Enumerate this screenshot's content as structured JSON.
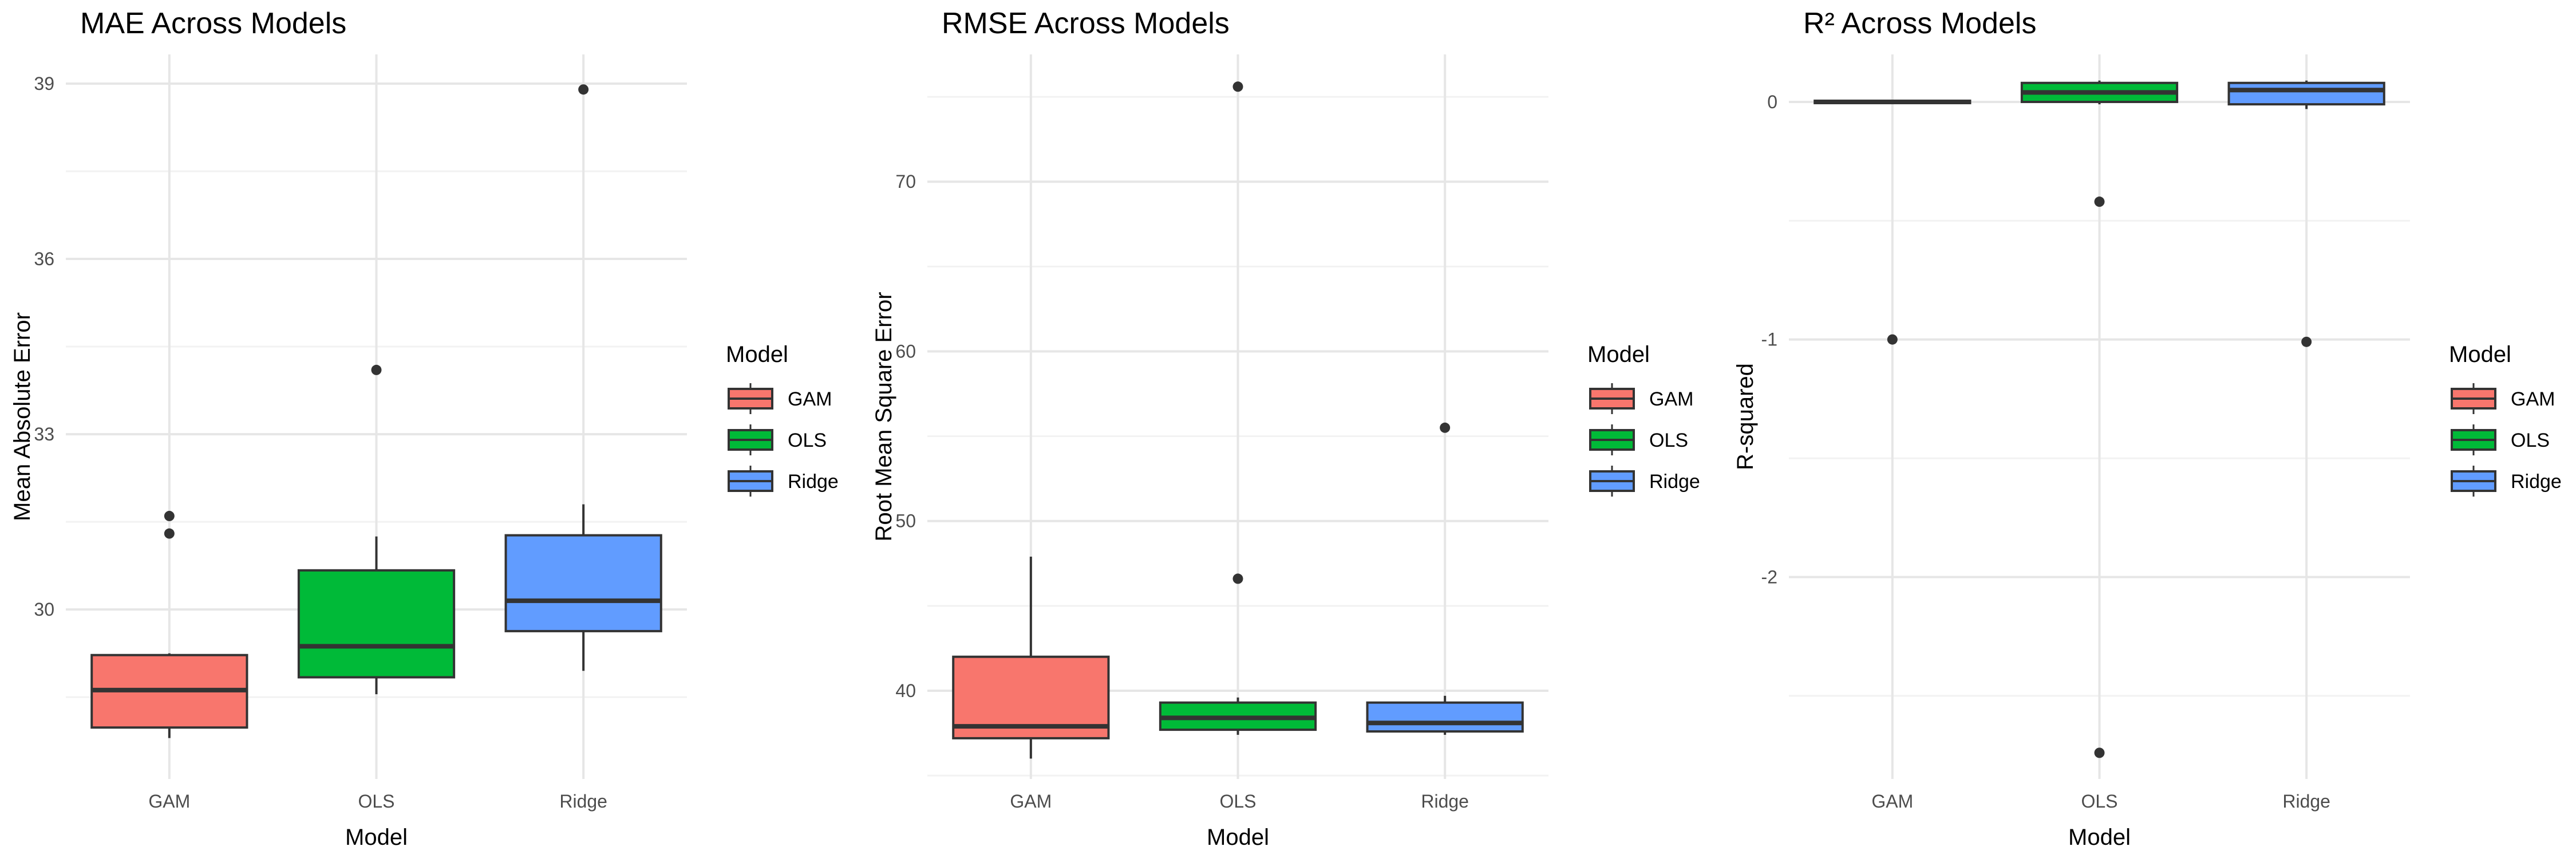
{
  "chart_data": [
    {
      "type": "boxplot",
      "title": "MAE Across Models",
      "xlabel": "Model",
      "ylabel": "Mean Absolute Error",
      "categories": [
        "GAM",
        "OLS",
        "Ridge"
      ],
      "yticks": [
        30,
        33,
        36,
        39
      ],
      "ylim": [
        27.1,
        39.5
      ],
      "grid": true,
      "legend": {
        "title": "Model",
        "position": "right",
        "entries": [
          "GAM",
          "OLS",
          "Ridge"
        ]
      },
      "series": [
        {
          "name": "GAM",
          "color": "#F8766D",
          "q1": 27.98,
          "median": 28.62,
          "q3": 29.22,
          "whisker_low": 27.8,
          "whisker_high": 29.25,
          "outliers": [
            31.3,
            31.6
          ]
        },
        {
          "name": "OLS",
          "color": "#00BA38",
          "q1": 28.84,
          "median": 29.37,
          "q3": 30.67,
          "whisker_low": 28.55,
          "whisker_high": 31.25,
          "outliers": [
            34.1
          ]
        },
        {
          "name": "Ridge",
          "color": "#619CFF",
          "q1": 29.63,
          "median": 30.15,
          "q3": 31.27,
          "whisker_low": 28.95,
          "whisker_high": 31.8,
          "outliers": [
            38.9
          ]
        }
      ]
    },
    {
      "type": "boxplot",
      "title": "RMSE Across Models",
      "xlabel": "Model",
      "ylabel": "Root Mean Square Error",
      "categories": [
        "GAM",
        "OLS",
        "Ridge"
      ],
      "yticks": [
        40,
        50,
        60,
        70
      ],
      "ylim": [
        34.8,
        77.5
      ],
      "grid": true,
      "legend": {
        "title": "Model",
        "position": "right",
        "entries": [
          "GAM",
          "OLS",
          "Ridge"
        ]
      },
      "series": [
        {
          "name": "GAM",
          "color": "#F8766D",
          "q1": 37.2,
          "median": 37.9,
          "q3": 42.0,
          "whisker_low": 36.0,
          "whisker_high": 47.9,
          "outliers": []
        },
        {
          "name": "OLS",
          "color": "#00BA38",
          "q1": 37.7,
          "median": 38.4,
          "q3": 39.3,
          "whisker_low": 37.4,
          "whisker_high": 39.6,
          "outliers": [
            46.6,
            75.6
          ]
        },
        {
          "name": "Ridge",
          "color": "#619CFF",
          "q1": 37.6,
          "median": 38.1,
          "q3": 39.3,
          "whisker_low": 37.4,
          "whisker_high": 39.7,
          "outliers": [
            55.5
          ]
        }
      ]
    },
    {
      "type": "boxplot",
      "title": "R² Across Models",
      "xlabel": "Model",
      "ylabel": "R-squared",
      "categories": [
        "GAM",
        "OLS",
        "Ridge"
      ],
      "yticks": [
        0,
        -1,
        -2
      ],
      "ylim": [
        -2.85,
        0.2
      ],
      "grid": true,
      "legend": {
        "title": "Model",
        "position": "right",
        "entries": [
          "GAM",
          "OLS",
          "Ridge"
        ]
      },
      "series": [
        {
          "name": "GAM",
          "color": "#F8766D",
          "q1": -0.005,
          "median": 0.0,
          "q3": 0.005,
          "whisker_low": -0.005,
          "whisker_high": 0.005,
          "outliers": [
            -1.0
          ]
        },
        {
          "name": "OLS",
          "color": "#00BA38",
          "q1": 0.0,
          "median": 0.04,
          "q3": 0.08,
          "whisker_low": -0.01,
          "whisker_high": 0.09,
          "outliers": [
            -0.42,
            -2.74
          ]
        },
        {
          "name": "Ridge",
          "color": "#619CFF",
          "q1": -0.01,
          "median": 0.05,
          "q3": 0.08,
          "whisker_low": -0.03,
          "whisker_high": 0.09,
          "outliers": [
            -1.01
          ]
        }
      ]
    }
  ]
}
